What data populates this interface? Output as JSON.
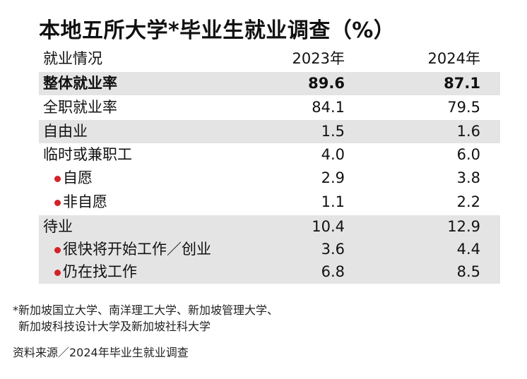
{
  "title": "本地五所大学*毕业生就业调查（%）",
  "table": {
    "header": [
      "就业情况",
      "2023年",
      "2024年"
    ],
    "rows": [
      [
        "整体就业率",
        "89.6",
        "87.1"
      ],
      [
        "全职就业率",
        "84.1",
        "79.5"
      ],
      [
        "自由业",
        "1.5",
        "1.6"
      ],
      [
        "临时或兼职工",
        "4.0",
        "6.0"
      ],
      [
        "自愿",
        "2.9",
        "3.8"
      ],
      [
        "非自愿",
        "1.1",
        "2.2"
      ],
      [
        "待业",
        "10.4",
        "12.9"
      ],
      [
        "很快将开始工作／创业",
        "3.6",
        "4.4"
      ],
      [
        "仍在找工作",
        "6.8",
        "8.5"
      ]
    ]
  },
  "footnote": [
    "*新加坡国立大学、南洋理工大学、新加坡管理大学、",
    "新加坡科技设计大学及新加坡社科大学"
  ],
  "source": "资料来源／2024年毕业生就业调查"
}
